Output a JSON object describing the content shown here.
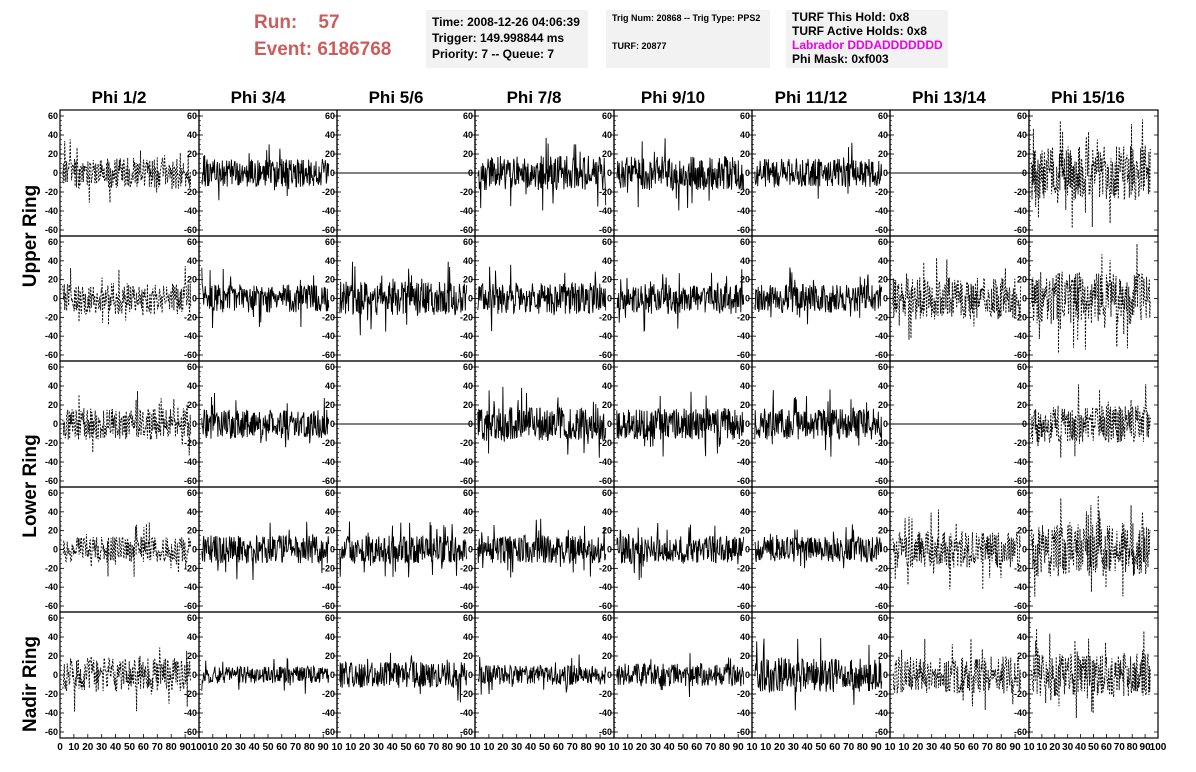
{
  "header": {
    "run_label": "Run:",
    "run_value": "57",
    "event_label": "Event:",
    "event_value": "6186768",
    "time_box": {
      "time": "Time: 2008-12-26 04:06:39",
      "trigger": "Trigger: 149.998844 ms",
      "priority": "Priority: 7 -- Queue: 7"
    },
    "trig_box": {
      "trig": "Trig Num: 20868 -- Trig Type: PPS2",
      "turf": "TURF: 20877"
    },
    "turf_box": {
      "this_hold": "TURF This Hold: 0x8",
      "active_holds": "TURF Active Holds: 0x8",
      "labrador": "Labrador DDDADDDDDDD",
      "phi_mask": "Phi Mask: 0xf003"
    },
    "colors": {
      "run_text": "#cd5c5c",
      "labrador_text": "#ee00ee",
      "box_bg": "#f2f2f2"
    }
  },
  "columns": [
    "Phi 1/2",
    "Phi 3/4",
    "Phi 5/6",
    "Phi 7/8",
    "Phi 9/10",
    "Phi 11/12",
    "Phi 13/14",
    "Phi 15/16"
  ],
  "ring_labels": {
    "upper": "Upper Ring",
    "lower": "Lower Ring",
    "nadir": "Nadir Ring"
  },
  "chart_data": {
    "type": "line",
    "description_rows": 5,
    "description_cols": 8,
    "x_range": [
      0,
      100
    ],
    "y_range": [
      -60,
      60
    ],
    "y_ticks": [
      -60,
      -40,
      -20,
      0,
      20,
      40,
      60
    ],
    "y_tick_labels": [
      "-60",
      "-40",
      "-20",
      "0",
      "20",
      "40",
      "60"
    ],
    "x_ticks": [
      0,
      10,
      20,
      30,
      40,
      50,
      60,
      70,
      80,
      90,
      100
    ],
    "x_tick_labels_first": [
      "0",
      "10",
      "20",
      "30",
      "40",
      "50",
      "60",
      "70",
      "80",
      "90",
      "100"
    ],
    "x_tick_labels_other": [
      "10",
      "20",
      "30",
      "40",
      "50",
      "60",
      "70",
      "80",
      "90",
      "10"
    ],
    "x_tick_labels_last": [
      "10",
      "20",
      "30",
      "40",
      "50",
      "60",
      "70",
      "80",
      "90",
      "100"
    ],
    "panels": [
      [
        {
          "style": "dashed",
          "amp": 22,
          "seed": 11
        },
        {
          "style": "solid",
          "amp": 20,
          "seed": 12
        },
        {
          "style": "flat",
          "amp": 0,
          "seed": 13
        },
        {
          "style": "solid",
          "amp": 24,
          "seed": 14
        },
        {
          "style": "solid",
          "amp": 24,
          "seed": 15
        },
        {
          "style": "solid",
          "amp": 20,
          "seed": 16
        },
        {
          "style": "flat",
          "amp": 0,
          "seed": 17
        },
        {
          "style": "dashed",
          "amp": 38,
          "seed": 18
        }
      ],
      [
        {
          "style": "dashed",
          "amp": 22,
          "seed": 21
        },
        {
          "style": "solid",
          "amp": 20,
          "seed": 22
        },
        {
          "style": "solid",
          "amp": 24,
          "seed": 23
        },
        {
          "style": "solid",
          "amp": 22,
          "seed": 24
        },
        {
          "style": "solid",
          "amp": 22,
          "seed": 25
        },
        {
          "style": "solid",
          "amp": 20,
          "seed": 26
        },
        {
          "style": "dashed",
          "amp": 30,
          "seed": 27
        },
        {
          "style": "dashed",
          "amp": 38,
          "seed": 28
        }
      ],
      [
        {
          "style": "dashed",
          "amp": 22,
          "seed": 31
        },
        {
          "style": "solid",
          "amp": 20,
          "seed": 32
        },
        {
          "style": "flat",
          "amp": 0,
          "seed": 33
        },
        {
          "style": "solid",
          "amp": 24,
          "seed": 34
        },
        {
          "style": "solid",
          "amp": 22,
          "seed": 35
        },
        {
          "style": "solid",
          "amp": 22,
          "seed": 36
        },
        {
          "style": "flat",
          "amp": 0,
          "seed": 37
        },
        {
          "style": "dashed",
          "amp": 26,
          "seed": 38
        }
      ],
      [
        {
          "style": "dashed",
          "amp": 18,
          "seed": 41
        },
        {
          "style": "solid",
          "amp": 20,
          "seed": 42
        },
        {
          "style": "solid",
          "amp": 20,
          "seed": 43
        },
        {
          "style": "solid",
          "amp": 20,
          "seed": 44
        },
        {
          "style": "solid",
          "amp": 20,
          "seed": 45
        },
        {
          "style": "solid",
          "amp": 18,
          "seed": 46
        },
        {
          "style": "dashed",
          "amp": 26,
          "seed": 47
        },
        {
          "style": "dashed",
          "amp": 38,
          "seed": 48
        }
      ],
      [
        {
          "style": "dashed",
          "amp": 24,
          "seed": 51
        },
        {
          "style": "solid",
          "amp": 12,
          "seed": 52
        },
        {
          "style": "solid",
          "amp": 18,
          "seed": 53
        },
        {
          "style": "solid",
          "amp": 14,
          "seed": 54
        },
        {
          "style": "solid",
          "amp": 16,
          "seed": 55
        },
        {
          "style": "solid",
          "amp": 24,
          "seed": 56
        },
        {
          "style": "dashed",
          "amp": 26,
          "seed": 57
        },
        {
          "style": "dashed",
          "amp": 30,
          "seed": 58
        }
      ]
    ]
  }
}
